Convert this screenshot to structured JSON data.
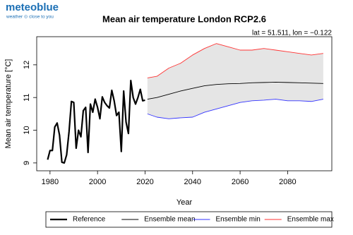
{
  "logo": {
    "name": "meteoblue",
    "tagline": "weather ⊙ close to you"
  },
  "chart_data": {
    "type": "line",
    "title": "Mean air temperature London RCP2.6",
    "subtitle": "lat = 51.511, lon = −0.122",
    "x_label": "Year",
    "y_label": "Mean air temperature [°C]",
    "xlim": [
      1974.4,
      2098.6
    ],
    "xticks": [
      1980,
      2000,
      2020,
      2040,
      2060,
      2080
    ],
    "ylim": [
      8.76,
      12.86
    ],
    "yticks": [
      9,
      10,
      11,
      12
    ],
    "grid": false,
    "legend": "bottom",
    "band": {
      "color": "#e5e5e5",
      "lower": "Ensemble min",
      "upper": "Ensemble max"
    },
    "series": [
      {
        "name": "Reference",
        "color": "#000000",
        "width": 2.2,
        "x": [
          1979,
          1980,
          1981,
          1982,
          1983,
          1984,
          1985,
          1986,
          1987,
          1988,
          1989,
          1990,
          1991,
          1992,
          1993,
          1994,
          1995,
          1996,
          1997,
          1998,
          1999,
          2000,
          2001,
          2002,
          2003,
          2004,
          2005,
          2006,
          2007,
          2008,
          2009,
          2010,
          2011,
          2012,
          2013,
          2014,
          2015,
          2016,
          2017,
          2018,
          2019,
          2020
        ],
        "values": [
          9.1,
          9.38,
          9.38,
          10.1,
          10.22,
          9.85,
          9.02,
          9.0,
          9.25,
          9.95,
          10.88,
          10.85,
          9.45,
          10.0,
          9.8,
          10.6,
          10.7,
          9.32,
          10.8,
          10.55,
          10.95,
          10.7,
          10.35,
          11.02,
          10.85,
          10.75,
          10.68,
          11.22,
          10.9,
          10.45,
          10.55,
          9.35,
          11.2,
          10.25,
          9.9,
          11.52,
          11.0,
          10.8,
          11.0,
          11.25,
          10.9,
          10.92
        ]
      },
      {
        "name": "Ensemble mean",
        "color": "#000000",
        "width": 0.9,
        "x": [
          2021,
          2025,
          2030,
          2035,
          2040,
          2045,
          2050,
          2055,
          2060,
          2065,
          2070,
          2075,
          2080,
          2085,
          2090,
          2095
        ],
        "values": [
          10.95,
          11.0,
          11.1,
          11.2,
          11.28,
          11.36,
          11.4,
          11.42,
          11.43,
          11.45,
          11.46,
          11.47,
          11.46,
          11.45,
          11.44,
          11.43
        ]
      },
      {
        "name": "Ensemble min",
        "color": "#3333ff",
        "width": 0.9,
        "x": [
          2021,
          2025,
          2030,
          2035,
          2040,
          2045,
          2050,
          2055,
          2060,
          2065,
          2070,
          2075,
          2080,
          2085,
          2090,
          2095
        ],
        "values": [
          10.5,
          10.4,
          10.35,
          10.38,
          10.4,
          10.55,
          10.65,
          10.75,
          10.85,
          10.9,
          10.92,
          10.95,
          10.9,
          10.9,
          10.88,
          10.95
        ]
      },
      {
        "name": "Ensemble max",
        "color": "#ff3333",
        "width": 0.9,
        "x": [
          2021,
          2025,
          2030,
          2035,
          2040,
          2045,
          2050,
          2055,
          2060,
          2065,
          2070,
          2075,
          2080,
          2085,
          2090,
          2095
        ],
        "values": [
          11.6,
          11.65,
          11.9,
          12.05,
          12.3,
          12.5,
          12.65,
          12.55,
          12.45,
          12.45,
          12.5,
          12.45,
          12.4,
          12.35,
          12.3,
          12.35
        ]
      }
    ]
  }
}
